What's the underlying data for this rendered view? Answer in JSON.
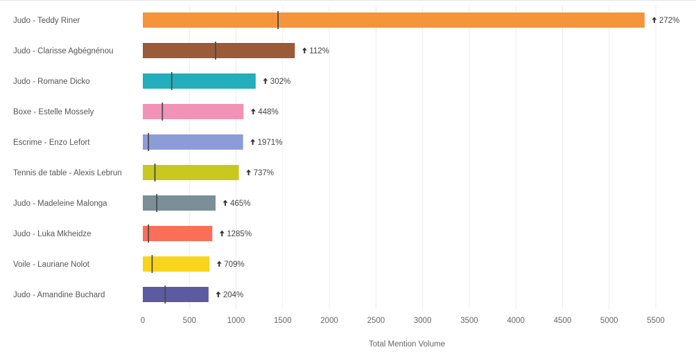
{
  "chart_data": {
    "type": "bar",
    "orientation": "horizontal",
    "categories": [
      "Judo - Teddy Riner",
      "Judo - Clarisse Agbégnénou",
      "Judo - Romane Dicko",
      "Boxe - Estelle Mossely",
      "Escrime - Enzo Lefort",
      "Tennis de table - Alexis Lebrun",
      "Judo - Madeleine Malonga",
      "Judo - Luka Mkheidze",
      "Voile - Lauriane Nolot",
      "Judo - Amandine Buchard"
    ],
    "values": [
      5380,
      1630,
      1210,
      1080,
      1075,
      1030,
      780,
      745,
      715,
      705
    ],
    "markers": [
      1450,
      780,
      310,
      210,
      60,
      130,
      150,
      60,
      100,
      240
    ],
    "change_labels": [
      "272%",
      "112%",
      "302%",
      "448%",
      "1971%",
      "737%",
      "465%",
      "1285%",
      "709%",
      "204%"
    ],
    "colors": [
      "#f5943a",
      "#9b5a38",
      "#24aebc",
      "#f193b4",
      "#8b9cd8",
      "#c8c81e",
      "#7a8f97",
      "#fb6e57",
      "#f8d51c",
      "#5c5b9f"
    ],
    "xlabel": "Total Mention Volume",
    "xlim": [
      0,
      5600
    ],
    "xticks": [
      0,
      500,
      1000,
      1500,
      2000,
      2500,
      3000,
      3500,
      4000,
      4500,
      5000,
      5500
    ],
    "grid": true
  }
}
